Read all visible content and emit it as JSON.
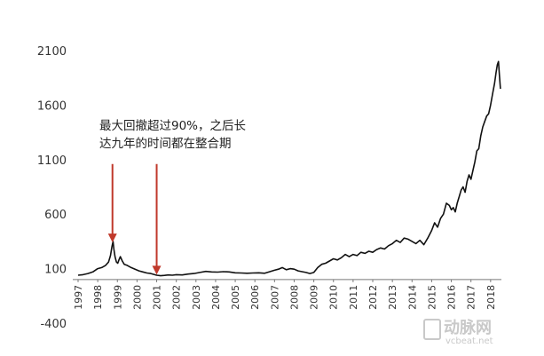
{
  "chart_data": {
    "type": "line",
    "title": "",
    "xlabel": "",
    "ylabel": "",
    "ylim": [
      -400,
      2100
    ],
    "yticks": [
      2100,
      1600,
      1100,
      600,
      100,
      -400
    ],
    "ytick_labels": [
      "2100",
      "1600",
      "1100",
      "600",
      "100",
      "-400"
    ],
    "xlim": [
      1997.0,
      2018.55
    ],
    "xtick_labels": [
      "1997",
      "1998",
      "1999",
      "2000",
      "2001",
      "2002",
      "2003",
      "2004",
      "2005",
      "2006",
      "2007",
      "2008",
      "2009",
      "2010",
      "2011",
      "2012",
      "2013",
      "2014",
      "2015",
      "2016",
      "2017",
      "2018"
    ],
    "grid": false,
    "line_color": "#111111",
    "annotation": {
      "lines": [
        "最大回撤超过90%，之后长",
        "达九年的时间都在整合期"
      ],
      "arrow_color": "#c0392b",
      "arrows": [
        {
          "x": 1998.75,
          "y_from": 1060,
          "y_to": 340
        },
        {
          "x": 2001.0,
          "y_from": 1060,
          "y_to": 45
        }
      ]
    },
    "series": [
      {
        "x": [
          1997.0,
          1997.25,
          1997.5,
          1997.75,
          1998.0,
          1998.2,
          1998.4,
          1998.55,
          1998.65,
          1998.72,
          1998.78,
          1998.82,
          1998.88,
          1998.95,
          1999.02,
          1999.08,
          1999.15,
          1999.25,
          1999.35,
          1999.5,
          1999.7,
          1999.9,
          2000.1,
          2000.3,
          2000.5,
          2000.7,
          2000.9,
          2001.0,
          2001.2,
          2001.4,
          2001.6,
          2001.8,
          2002.0,
          2002.3,
          2002.6,
          2002.9,
          2003.2,
          2003.5,
          2003.8,
          2004.1,
          2004.4,
          2004.7,
          2005.0,
          2005.3,
          2005.6,
          2005.9,
          2006.2,
          2006.5,
          2006.8,
          2007.0,
          2007.2,
          2007.4,
          2007.6,
          2007.8,
          2008.0,
          2008.2,
          2008.4,
          2008.6,
          2008.8,
          2009.0,
          2009.2,
          2009.4,
          2009.6,
          2009.8,
          2010.0,
          2010.2,
          2010.4,
          2010.6,
          2010.8,
          2011.0,
          2011.2,
          2011.4,
          2011.6,
          2011.8,
          2012.0,
          2012.2,
          2012.4,
          2012.6,
          2012.8,
          2013.0,
          2013.2,
          2013.4,
          2013.6,
          2013.8,
          2014.0,
          2014.2,
          2014.4,
          2014.6,
          2014.8,
          2015.0,
          2015.15,
          2015.3,
          2015.45,
          2015.6,
          2015.75,
          2015.9,
          2016.0,
          2016.1,
          2016.2,
          2016.3,
          2016.4,
          2016.5,
          2016.6,
          2016.7,
          2016.8,
          2016.9,
          2017.0,
          2017.1,
          2017.2,
          2017.3,
          2017.4,
          2017.5,
          2017.6,
          2017.7,
          2017.8,
          2017.9,
          2018.0,
          2018.1,
          2018.2,
          2018.28,
          2018.34,
          2018.4,
          2018.45,
          2018.5
        ],
        "y": [
          40,
          45,
          55,
          70,
          100,
          110,
          130,
          160,
          220,
          300,
          350,
          280,
          210,
          160,
          150,
          180,
          210,
          170,
          140,
          130,
          110,
          95,
          80,
          70,
          60,
          55,
          45,
          40,
          35,
          38,
          42,
          40,
          45,
          42,
          50,
          55,
          65,
          75,
          70,
          68,
          72,
          70,
          62,
          60,
          58,
          60,
          62,
          58,
          75,
          85,
          95,
          110,
          90,
          100,
          95,
          80,
          72,
          65,
          55,
          65,
          110,
          140,
          150,
          170,
          190,
          180,
          200,
          230,
          210,
          230,
          220,
          250,
          240,
          260,
          250,
          275,
          290,
          280,
          310,
          330,
          360,
          340,
          380,
          370,
          350,
          330,
          360,
          320,
          380,
          450,
          520,
          480,
          560,
          600,
          700,
          680,
          640,
          660,
          620,
          700,
          760,
          820,
          850,
          800,
          900,
          960,
          920,
          1000,
          1080,
          1180,
          1200,
          1320,
          1400,
          1450,
          1500,
          1520,
          1600,
          1700,
          1800,
          1900,
          1970,
          2000,
          1870,
          1750
        ]
      }
    ]
  },
  "watermark": {
    "main": "动脉网",
    "sub": "vcbeat.net"
  }
}
